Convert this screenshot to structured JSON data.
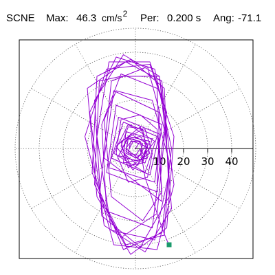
{
  "header": {
    "station": "SCNE",
    "max_label": "Max:",
    "max_value": "46.3",
    "max_unit": "cm/s",
    "max_unit_exp": "2",
    "per_label": "Per:",
    "per_value": "0.200 s",
    "ang_label": "Ang:",
    "ang_value": "-71.1"
  },
  "chart_data": {
    "type": "polar-orbit",
    "radial_ticks": [
      "10",
      "20",
      "30",
      "40"
    ],
    "radial_range": [
      0,
      50
    ],
    "grid": "dotted",
    "colors": {
      "trace": "#9400d3",
      "end_marker": "#1a9a6b",
      "grid": "#555555",
      "axis": "#000000"
    },
    "end_point": {
      "x": 14,
      "y": -40
    },
    "trace": [
      [
        0,
        0
      ],
      [
        2,
        3
      ],
      [
        -3,
        4
      ],
      [
        -4,
        -2
      ],
      [
        3,
        -5
      ],
      [
        5,
        2
      ],
      [
        -2,
        6
      ],
      [
        -6,
        -1
      ],
      [
        1,
        -7
      ],
      [
        6,
        3
      ],
      [
        -3,
        5
      ],
      [
        -7,
        -3
      ],
      [
        4,
        -6
      ],
      [
        7,
        4
      ],
      [
        -4,
        7
      ],
      [
        -5,
        -6
      ],
      [
        5,
        -4
      ],
      [
        3,
        8
      ],
      [
        -6,
        3
      ],
      [
        -3,
        -8
      ],
      [
        6,
        -2
      ],
      [
        2,
        9
      ],
      [
        -8,
        1
      ],
      [
        -1,
        -9
      ],
      [
        8,
        3
      ],
      [
        -3,
        10
      ],
      [
        -9,
        -2
      ],
      [
        4,
        -10
      ],
      [
        9,
        5
      ],
      [
        -5,
        11
      ],
      [
        -10,
        -4
      ],
      [
        6,
        -11
      ],
      [
        10,
        6
      ],
      [
        -7,
        13
      ],
      [
        -11,
        -8
      ],
      [
        8,
        -14
      ],
      [
        11,
        10
      ],
      [
        -8,
        18
      ],
      [
        -12,
        -10
      ],
      [
        9,
        -18
      ],
      [
        10,
        15
      ],
      [
        -9,
        24
      ],
      [
        -13,
        -4
      ],
      [
        11,
        -22
      ],
      [
        9,
        25
      ],
      [
        -6,
        31
      ],
      [
        -14,
        10
      ],
      [
        -12,
        -26
      ],
      [
        7,
        -33
      ],
      [
        12,
        8
      ],
      [
        5,
        34
      ],
      [
        -10,
        28
      ],
      [
        -15,
        -20
      ],
      [
        -6,
        -37
      ],
      [
        9,
        -27
      ],
      [
        13,
        15
      ],
      [
        6,
        36
      ],
      [
        -11,
        36
      ],
      [
        -16,
        5
      ],
      [
        -10,
        -34
      ],
      [
        8,
        -38
      ],
      [
        14,
        -10
      ],
      [
        10,
        30
      ],
      [
        -5,
        39
      ],
      [
        -17,
        20
      ],
      [
        -14,
        -28
      ],
      [
        2,
        -41
      ],
      [
        14,
        -20
      ],
      [
        12,
        25
      ],
      [
        -2,
        37
      ],
      [
        -16,
        30
      ],
      [
        -18,
        -10
      ],
      [
        -5,
        -42
      ],
      [
        11,
        -35
      ],
      [
        15,
        0
      ],
      [
        8,
        33
      ],
      [
        -8,
        38
      ],
      [
        -19,
        15
      ],
      [
        -13,
        -32
      ],
      [
        4,
        -43
      ],
      [
        15,
        -25
      ],
      [
        11,
        28
      ],
      [
        -4,
        36
      ],
      [
        -20,
        25
      ],
      [
        -16,
        -20
      ],
      [
        -2,
        -44
      ],
      [
        13,
        -33
      ],
      [
        16,
        5
      ],
      [
        6,
        35
      ],
      [
        -12,
        33
      ],
      [
        -21,
        5
      ],
      [
        -9,
        -40
      ],
      [
        9,
        -42
      ],
      [
        16,
        -15
      ],
      [
        10,
        30
      ],
      [
        -6,
        30
      ],
      [
        -15,
        28
      ],
      [
        -17,
        -15
      ],
      [
        -4,
        -40
      ],
      [
        12,
        -36
      ],
      [
        14,
        -5
      ],
      [
        7,
        20
      ],
      [
        -8,
        24
      ],
      [
        -13,
        12
      ],
      [
        -10,
        -20
      ],
      [
        3,
        -30
      ],
      [
        11,
        -18
      ],
      [
        9,
        8
      ],
      [
        2,
        14
      ],
      [
        -6,
        12
      ],
      [
        -8,
        -2
      ],
      [
        -3,
        -14
      ],
      [
        5,
        -12
      ],
      [
        7,
        -2
      ],
      [
        4,
        8
      ],
      [
        -3,
        9
      ],
      [
        -6,
        1
      ],
      [
        -2,
        -7
      ],
      [
        3,
        -6
      ],
      [
        5,
        1
      ],
      [
        2,
        5
      ],
      [
        -3,
        4
      ],
      [
        -4,
        -1
      ],
      [
        0,
        -4
      ],
      [
        3,
        -2
      ],
      [
        2,
        3
      ],
      [
        -2,
        3
      ],
      [
        -3,
        -2
      ],
      [
        2,
        -3
      ],
      [
        3,
        2
      ],
      [
        -1,
        4
      ],
      [
        -4,
        0
      ],
      [
        1,
        -4
      ],
      [
        4,
        1
      ],
      [
        -1,
        3
      ],
      [
        -3,
        -1
      ],
      [
        0,
        -3
      ],
      [
        2,
        0
      ],
      [
        4,
        -12
      ],
      [
        8,
        -24
      ],
      [
        11,
        -33
      ],
      [
        13,
        -38
      ],
      [
        14,
        -40
      ]
    ]
  }
}
